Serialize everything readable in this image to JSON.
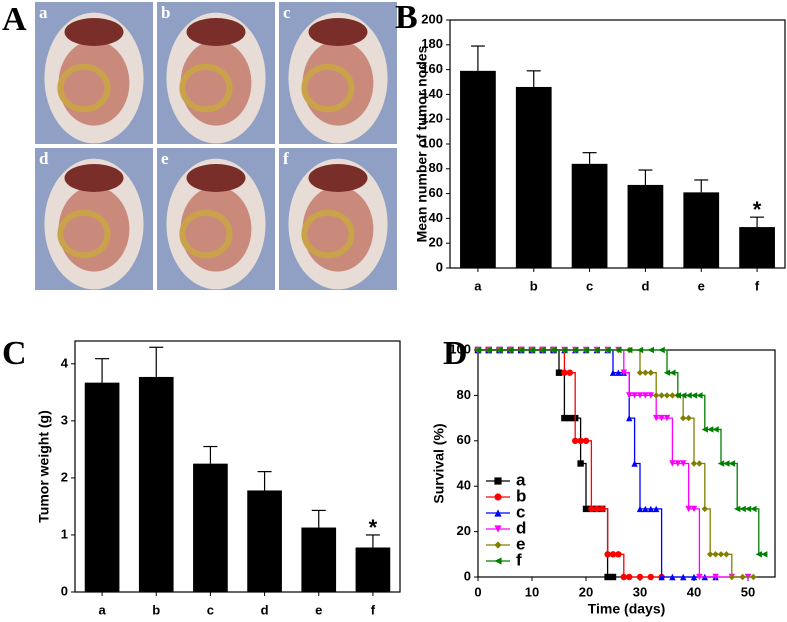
{
  "photo_panel": {
    "panel_label": "A",
    "tiles": [
      "a",
      "b",
      "c",
      "d",
      "e",
      "f"
    ]
  },
  "chart_data": [
    {
      "type": "bar",
      "panel_label": "B",
      "ylabel": "Mean number of tumor nodes",
      "categories": [
        "a",
        "b",
        "c",
        "d",
        "e",
        "f"
      ],
      "values": [
        159,
        146,
        84,
        67,
        61,
        33
      ],
      "errors": [
        20,
        13,
        9,
        12,
        10,
        8
      ],
      "color": "#000000",
      "ylim": [
        0,
        200
      ],
      "yticks": [
        0,
        20,
        40,
        60,
        80,
        100,
        120,
        140,
        160,
        180,
        200
      ],
      "annotations": [
        {
          "category": "f",
          "text": "*"
        }
      ]
    },
    {
      "type": "bar",
      "panel_label": "C",
      "ylabel": "Tumor weight (g)",
      "categories": [
        "a",
        "b",
        "c",
        "d",
        "e",
        "f"
      ],
      "values": [
        3.67,
        3.77,
        2.25,
        1.78,
        1.13,
        0.78
      ],
      "errors": [
        0.42,
        0.52,
        0.3,
        0.33,
        0.3,
        0.22
      ],
      "color": "#000000",
      "ylim": [
        0,
        4.4
      ],
      "yticks": [
        0,
        1,
        2,
        3,
        4
      ],
      "annotations": [
        {
          "category": "f",
          "text": "*"
        }
      ]
    },
    {
      "type": "line",
      "panel_label": "D",
      "xlabel": "Time (days)",
      "ylabel": "Survival (%)",
      "xlim": [
        0,
        55
      ],
      "xticks": [
        0,
        10,
        20,
        30,
        40,
        50
      ],
      "ylim": [
        0,
        100
      ],
      "yticks": [
        0,
        20,
        40,
        60,
        80,
        100
      ],
      "step": "post",
      "legend": "lower-left",
      "series": [
        {
          "name": "a",
          "color": "#000000",
          "marker": "square",
          "x": [
            0,
            2,
            4,
            6,
            8,
            10,
            12,
            14,
            15,
            16,
            17,
            18,
            19,
            20,
            21,
            22,
            23,
            24,
            25
          ],
          "values": [
            100,
            100,
            100,
            100,
            100,
            100,
            100,
            100,
            90,
            70,
            70,
            70,
            50,
            30,
            30,
            30,
            30,
            0,
            0
          ]
        },
        {
          "name": "b",
          "color": "#ff0000",
          "marker": "circle",
          "x": [
            0,
            2,
            4,
            6,
            8,
            10,
            12,
            14,
            16,
            17,
            18,
            19,
            20,
            21,
            22,
            23,
            24,
            25,
            26,
            27,
            28,
            30,
            32,
            34
          ],
          "values": [
            100,
            100,
            100,
            100,
            100,
            100,
            100,
            100,
            90,
            90,
            60,
            60,
            60,
            30,
            30,
            30,
            10,
            10,
            10,
            0,
            0,
            0,
            0,
            0
          ]
        },
        {
          "name": "c",
          "color": "#0000ff",
          "marker": "triangle-up",
          "x": [
            0,
            2,
            4,
            6,
            8,
            10,
            12,
            14,
            16,
            18,
            20,
            22,
            24,
            25,
            26,
            27,
            28,
            29,
            30,
            31,
            32,
            33,
            34,
            36,
            38,
            40,
            42,
            44
          ],
          "values": [
            100,
            100,
            100,
            100,
            100,
            100,
            100,
            100,
            100,
            100,
            100,
            100,
            100,
            90,
            90,
            90,
            70,
            50,
            30,
            30,
            30,
            30,
            0,
            0,
            0,
            0,
            0,
            0
          ]
        },
        {
          "name": "d",
          "color": "#ff00ff",
          "marker": "triangle-down",
          "x": [
            0,
            2,
            4,
            6,
            8,
            10,
            12,
            14,
            16,
            18,
            20,
            22,
            24,
            26,
            27,
            28,
            29,
            30,
            31,
            32,
            33,
            34,
            35,
            36,
            37,
            38,
            39,
            40,
            41,
            44,
            47,
            50
          ],
          "values": [
            100,
            100,
            100,
            100,
            100,
            100,
            100,
            100,
            100,
            100,
            100,
            100,
            100,
            100,
            90,
            80,
            80,
            80,
            80,
            80,
            70,
            70,
            70,
            50,
            50,
            50,
            30,
            30,
            0,
            0,
            0,
            0
          ]
        },
        {
          "name": "e",
          "color": "#808000",
          "marker": "diamond",
          "x": [
            0,
            2,
            4,
            6,
            8,
            10,
            12,
            14,
            16,
            18,
            20,
            22,
            24,
            26,
            28,
            30,
            31,
            32,
            33,
            34,
            35,
            36,
            37,
            38,
            39,
            40,
            41,
            42,
            43,
            44,
            45,
            46,
            47,
            49,
            51
          ],
          "values": [
            100,
            100,
            100,
            100,
            100,
            100,
            100,
            100,
            100,
            100,
            100,
            100,
            100,
            100,
            100,
            90,
            90,
            90,
            80,
            80,
            80,
            80,
            80,
            70,
            70,
            50,
            50,
            30,
            10,
            10,
            10,
            10,
            0,
            0,
            0
          ]
        },
        {
          "name": "f",
          "color": "#008000",
          "marker": "triangle-left",
          "x": [
            0,
            2,
            4,
            6,
            8,
            10,
            12,
            14,
            16,
            18,
            20,
            22,
            24,
            26,
            28,
            30,
            32,
            34,
            35,
            36,
            37,
            38,
            39,
            40,
            41,
            42,
            43,
            44,
            45,
            46,
            47,
            48,
            49,
            50,
            51,
            52,
            53
          ],
          "values": [
            100,
            100,
            100,
            100,
            100,
            100,
            100,
            100,
            100,
            100,
            100,
            100,
            100,
            100,
            100,
            100,
            100,
            100,
            90,
            90,
            80,
            80,
            80,
            80,
            80,
            65,
            65,
            65,
            50,
            50,
            50,
            30,
            30,
            30,
            30,
            10,
            10
          ]
        }
      ]
    }
  ]
}
